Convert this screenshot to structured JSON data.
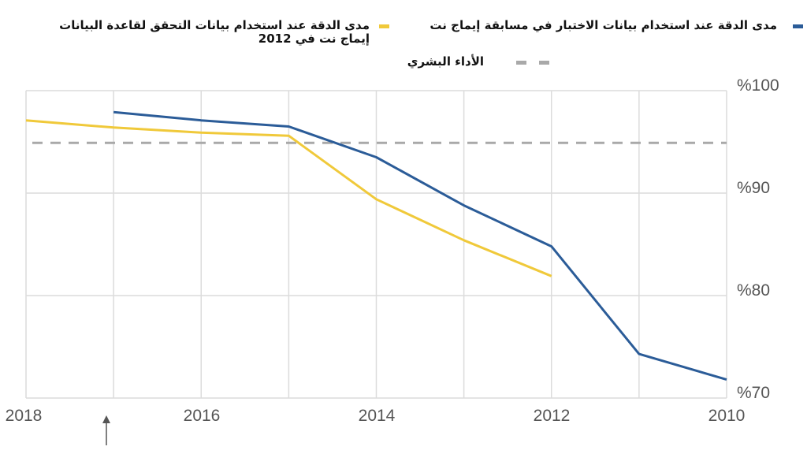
{
  "chart_data": {
    "type": "line",
    "x": [
      2018,
      2017,
      2016,
      2015,
      2014,
      2013,
      2012,
      2011,
      2010
    ],
    "xlim": [
      2018,
      2010
    ],
    "xticks": [
      "2018",
      "2016",
      "2014",
      "2012",
      "2010"
    ],
    "ylim": [
      70,
      100
    ],
    "yticks": [
      "%100",
      "%90",
      "%80",
      "%70"
    ],
    "grid": true,
    "legend_position": "top",
    "series": [
      {
        "name": "مدى الدقة عند استخدام بيانات الاختبار في مسابقة إيماج نت",
        "color": "#2b5c98",
        "x": [
          2017,
          2016,
          2015,
          2014,
          2013,
          2012,
          2011,
          2010
        ],
        "values": [
          97.9,
          97.1,
          96.5,
          93.5,
          88.8,
          84.8,
          74.3,
          71.8
        ]
      },
      {
        "name_line1": "مدى الدقة عند استخدام بيانات التحقق لقاعدة البيانات",
        "name_line2": "إيماج نت في 2012",
        "color": "#f0c93a",
        "x": [
          2018,
          2017,
          2016,
          2015,
          2014,
          2013,
          2012
        ],
        "values": [
          97.1,
          96.4,
          95.9,
          95.6,
          89.4,
          85.4,
          81.9
        ]
      },
      {
        "name": "الأداء البشري",
        "color": "#a9a9a9",
        "dashed": true,
        "x": [
          2018,
          2010
        ],
        "values": [
          94.9,
          94.9
        ]
      }
    ]
  }
}
